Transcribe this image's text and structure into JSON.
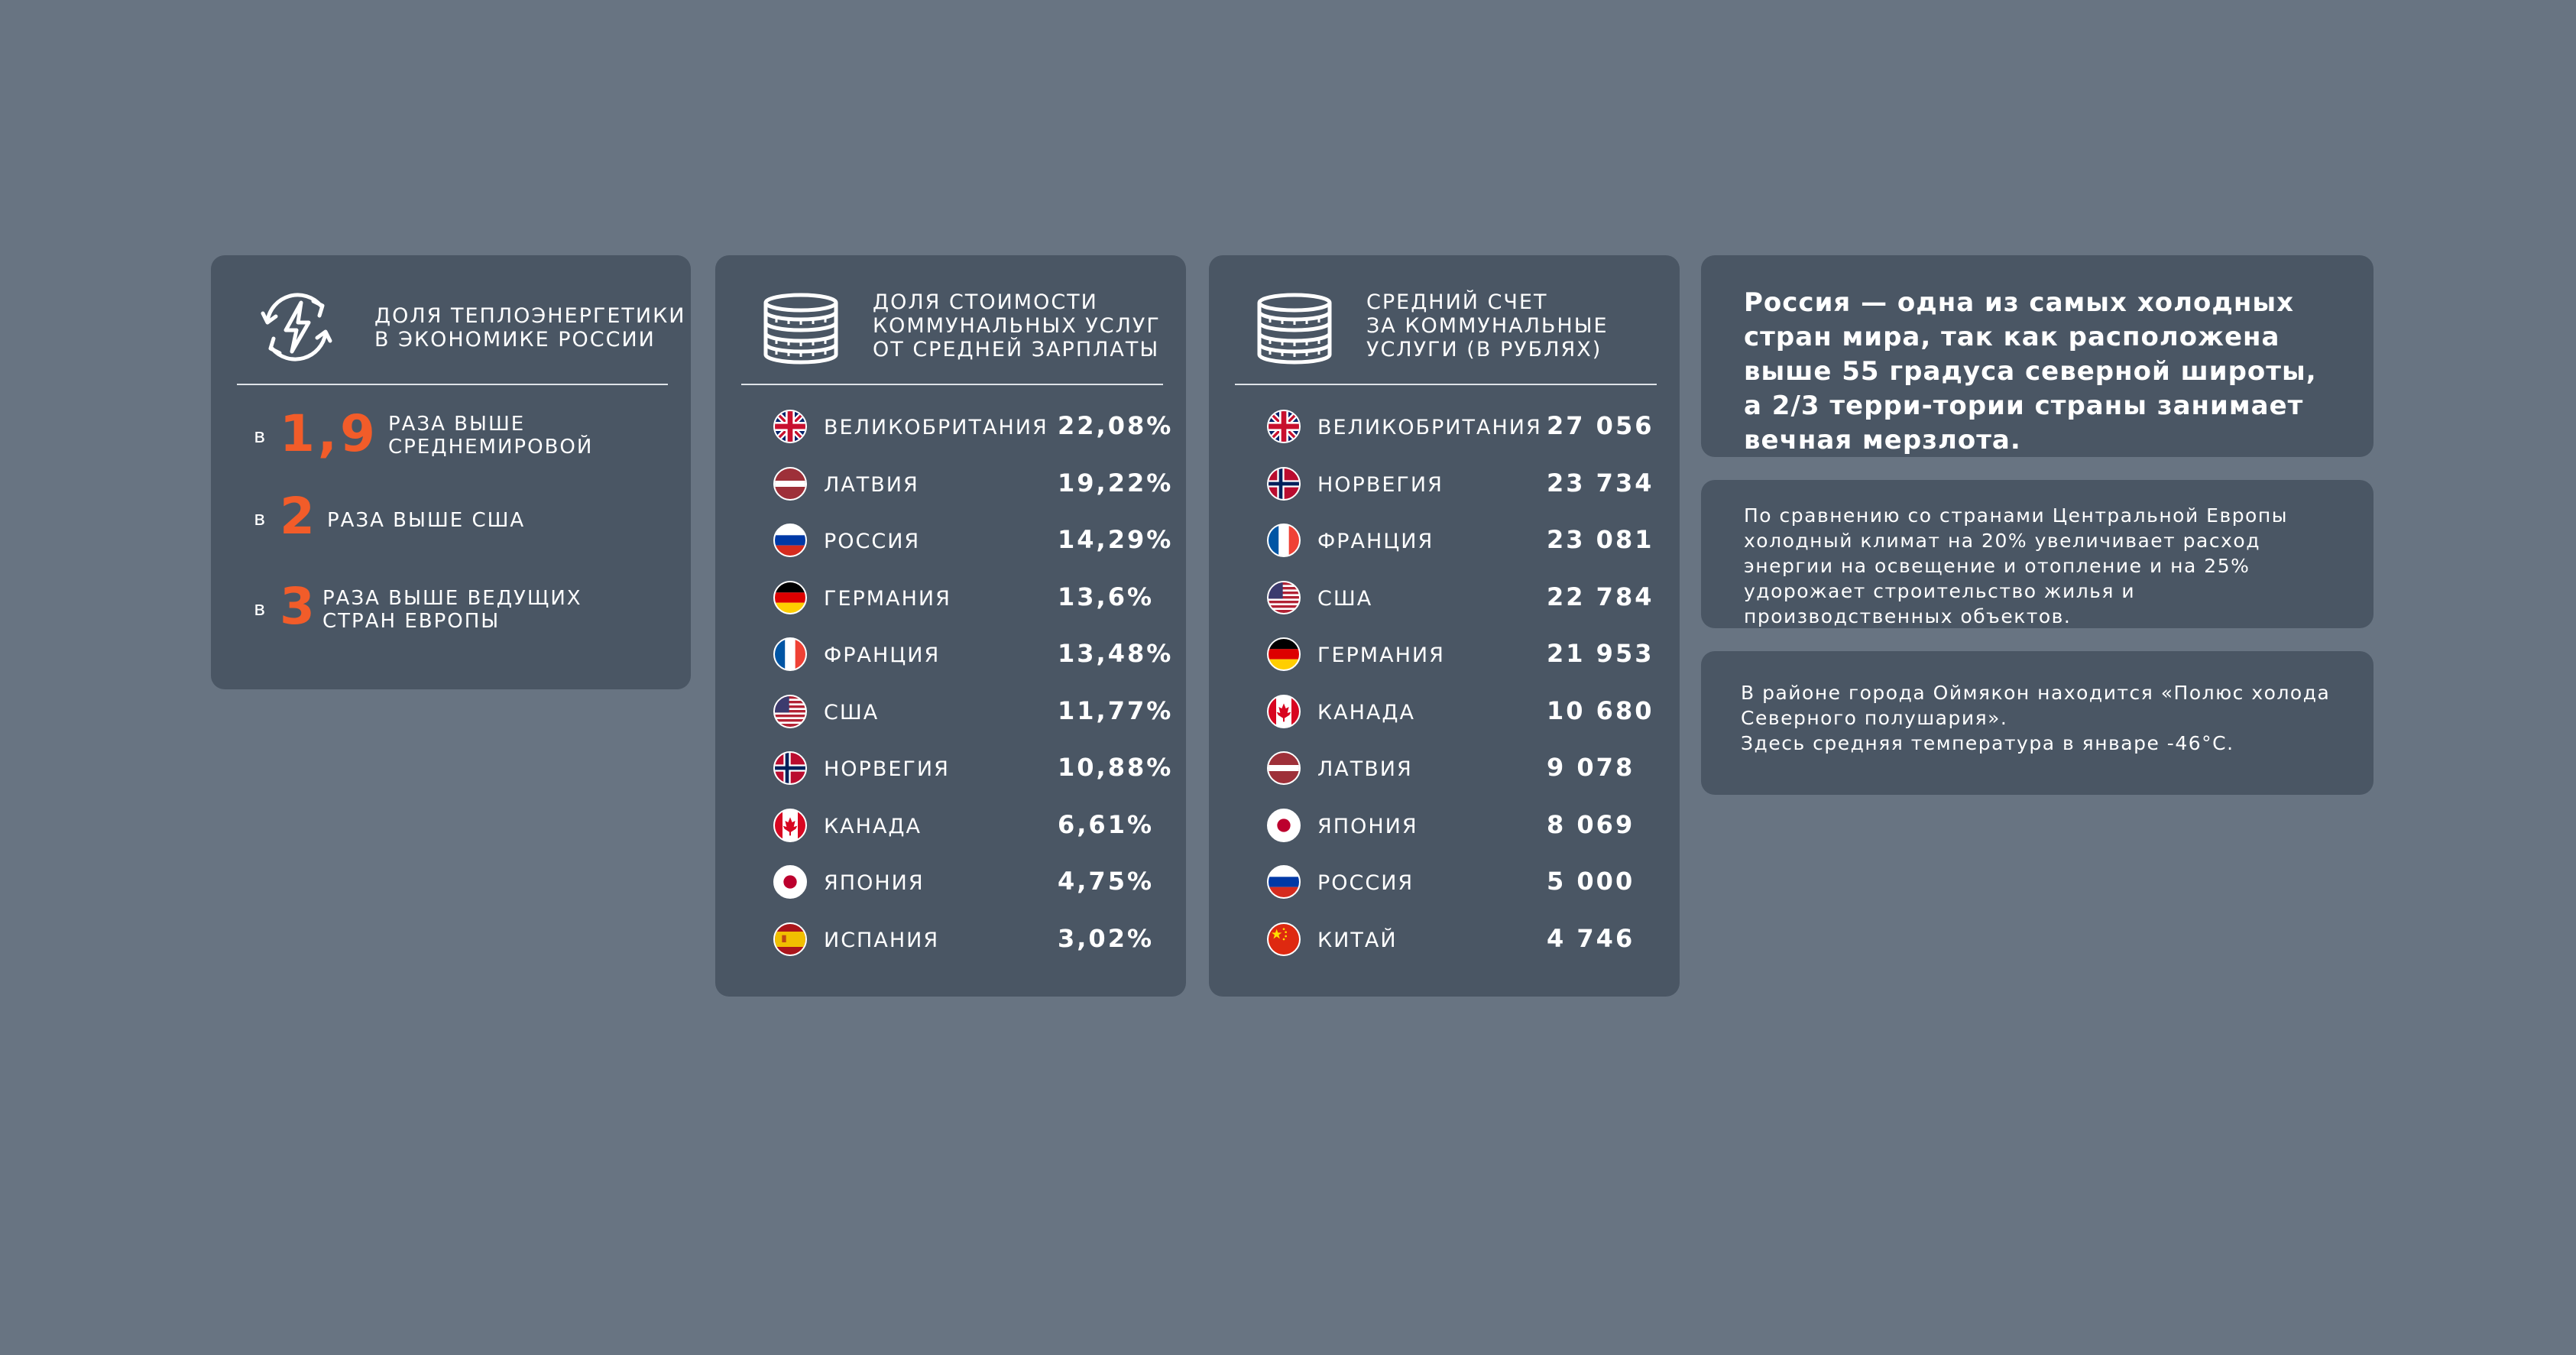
{
  "colors": {
    "background": "#687482",
    "card": "#4a5664",
    "accent": "#f25c29",
    "text": "#ffffff"
  },
  "card_energy": {
    "icon": "energy-cycle-icon",
    "title": "Доля теплоэнергетики\nв экономике России",
    "stats": [
      {
        "prefix": "в",
        "number": "1,9",
        "text": "раза выше\nсреднемировой"
      },
      {
        "prefix": "в",
        "number": "2",
        "text": "раза выше США"
      },
      {
        "prefix": "в",
        "number": "3",
        "text": "раза выше ведущих\nстран Европы"
      }
    ]
  },
  "card_share": {
    "icon": "coins-stack-icon",
    "title": "Доля стоимости\nкоммунальных услуг\nот средней зарплаты",
    "rows": [
      {
        "country": "Великобритания",
        "flag": "uk",
        "value": "22,08%"
      },
      {
        "country": "Латвия",
        "flag": "latvia",
        "value": "19,22%"
      },
      {
        "country": "Россия",
        "flag": "russia",
        "value": "14,29%"
      },
      {
        "country": "Германия",
        "flag": "germany",
        "value": "13,6%"
      },
      {
        "country": "Франция",
        "flag": "france",
        "value": "13,48%"
      },
      {
        "country": "США",
        "flag": "usa",
        "value": "11,77%"
      },
      {
        "country": "Норвегия",
        "flag": "norway",
        "value": "10,88%"
      },
      {
        "country": "Канада",
        "flag": "canada",
        "value": "6,61%"
      },
      {
        "country": "Япония",
        "flag": "japan",
        "value": "4,75%"
      },
      {
        "country": "Испания",
        "flag": "spain",
        "value": "3,02%"
      }
    ]
  },
  "card_bill": {
    "icon": "coins-stack-icon",
    "title": "Средний счет\nза коммунальные\nуслуги (в рублях)",
    "rows": [
      {
        "country": "Великобритания",
        "flag": "uk",
        "value": "27 056"
      },
      {
        "country": "Норвегия",
        "flag": "norway",
        "value": "23 734"
      },
      {
        "country": "Франция",
        "flag": "france",
        "value": "23 081"
      },
      {
        "country": "США",
        "flag": "usa",
        "value": "22 784"
      },
      {
        "country": "Германия",
        "flag": "germany",
        "value": "21 953"
      },
      {
        "country": "Канада",
        "flag": "canada",
        "value": "10 680"
      },
      {
        "country": "Латвия",
        "flag": "latvia",
        "value": "9 078"
      },
      {
        "country": "Япония",
        "flag": "japan",
        "value": "8 069"
      },
      {
        "country": "Россия",
        "flag": "russia",
        "value": "5 000"
      },
      {
        "country": "Китай",
        "flag": "china",
        "value": "4 746"
      }
    ]
  },
  "notes": {
    "climate": "Россия — одна из самых холодных стран мира, так как расположена выше 55 градуса северной широты, а 2/3 терри-тории страны занимает вечная мерзлота.",
    "europe": "По сравнению со странами Центральной Европы холодный климат на 20% увеличивает расход энергии на освещение и отопление и на 25% удорожает строительство жилья и производственных объектов.",
    "oymyakon": "В районе города Оймякон находится «Полюс холода Северного полушария».\nЗдесь средняя температура в январе -46°С."
  }
}
